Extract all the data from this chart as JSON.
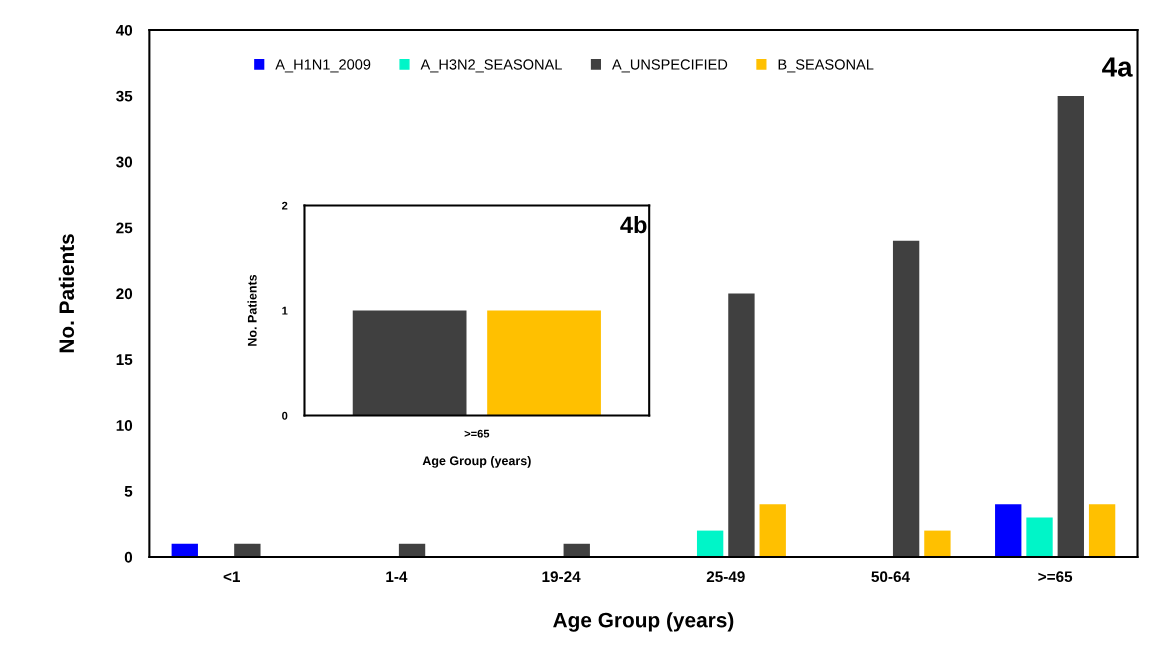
{
  "chart_data": [
    {
      "type": "bar",
      "xlabel": "Age Group (years)",
      "ylabel": "No. Patients",
      "categories": [
        "<1",
        "1-4",
        "19-24",
        "25-49",
        "50-64",
        ">=65"
      ],
      "series": [
        {
          "name": "A_H1N1_2009",
          "color": "#0000ff",
          "values": [
            1,
            0,
            0,
            0,
            0,
            4
          ]
        },
        {
          "name": "A_H3N2_SEASONAL",
          "color": "#00f5c8",
          "values": [
            0,
            0,
            0,
            2,
            0,
            3
          ]
        },
        {
          "name": "A_UNSPECIFIED",
          "color": "#404040",
          "values": [
            1,
            1,
            1,
            20,
            24,
            35
          ]
        },
        {
          "name": "B_SEASONAL",
          "color": "#ffc000",
          "values": [
            0,
            0,
            0,
            4,
            2,
            4
          ]
        }
      ],
      "ylim": [
        0,
        40
      ],
      "yticks": [
        0,
        5,
        10,
        15,
        20,
        25,
        30,
        35,
        40
      ],
      "legend": "top",
      "grid": false,
      "annotations": [
        "4a"
      ]
    },
    {
      "type": "bar",
      "xlabel": "Age Group (years)",
      "ylabel": "No. Patients",
      "categories": [
        ">=65"
      ],
      "series": [
        {
          "color": "#404040",
          "values": [
            1
          ]
        },
        {
          "color": "#ffc000",
          "values": [
            1
          ]
        }
      ],
      "ylim": [
        0,
        2
      ],
      "yticks": [
        0,
        1,
        2
      ],
      "grid": false,
      "annotations": [
        "4b"
      ]
    }
  ]
}
